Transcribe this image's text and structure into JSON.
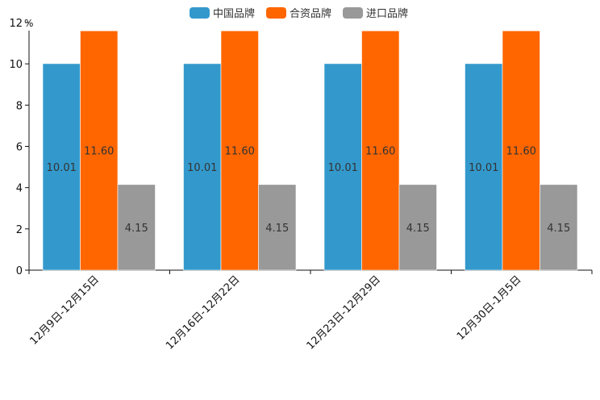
{
  "chart_data": {
    "type": "bar",
    "unit_label": "%",
    "categories": [
      "12月9日-12月15日",
      "12月16日-12月22日",
      "12月23日-12月29日",
      "12月30日-1月5日"
    ],
    "series": [
      {
        "name": "中国品牌",
        "color": "#3399cc",
        "values": [
          10.01,
          10.01,
          10.01,
          10.01
        ],
        "labels": [
          "10.01",
          "10.01",
          "10.01",
          "10.01"
        ]
      },
      {
        "name": "合资品牌",
        "color": "#ff6600",
        "values": [
          11.6,
          11.6,
          11.6,
          11.6
        ],
        "labels": [
          "11.60",
          "11.60",
          "11.60",
          "11.60"
        ]
      },
      {
        "name": "进口品牌",
        "color": "#999999",
        "values": [
          4.15,
          4.15,
          4.15,
          4.15
        ],
        "labels": [
          "4.15",
          "4.15",
          "4.15",
          "4.15"
        ]
      }
    ],
    "ylim": [
      0,
      12
    ],
    "yticks": [
      "0",
      "2",
      "4",
      "6",
      "8",
      "10",
      "12"
    ],
    "grid": false,
    "legend_position": "top-center"
  }
}
